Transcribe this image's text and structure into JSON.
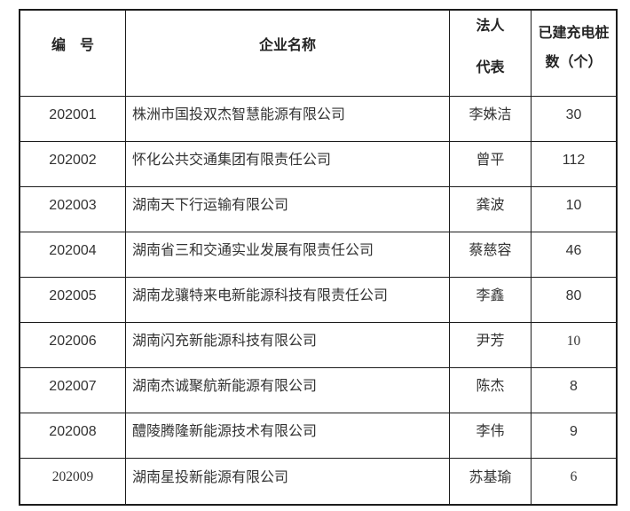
{
  "colors": {
    "border": "#1c1c1c",
    "text": "#333333",
    "header_text": "#242424",
    "background": "#ffffff"
  },
  "table": {
    "headers": {
      "id": "编　号",
      "company": "企业名称",
      "legal_line1": "法人",
      "legal_line2": "代表",
      "count_line1": "已建充电桩",
      "count_line2": "数（个）"
    },
    "rows": [
      {
        "id": "202001",
        "company": "株洲市国投双杰智慧能源有限公司",
        "legal": "李姝洁",
        "count": "30"
      },
      {
        "id": "202002",
        "company": "怀化公共交通集团有限责任公司",
        "legal": "曾平",
        "count": "112"
      },
      {
        "id": "202003",
        "company": "湖南天下行运输有限公司",
        "legal": "龚波",
        "count": "10"
      },
      {
        "id": "202004",
        "company": "湖南省三和交通实业发展有限责任公司",
        "legal": "蔡慈容",
        "count": "46"
      },
      {
        "id": "202005",
        "company": "湖南龙骧特来电新能源科技有限责任公司",
        "legal": "李鑫",
        "count": "80"
      },
      {
        "id": "202006",
        "company": "湖南闪充新能源科技有限公司",
        "legal": "尹芳",
        "count": "10"
      },
      {
        "id": "202007",
        "company": "湖南杰诚聚航新能源有限公司",
        "legal": "陈杰",
        "count": "8"
      },
      {
        "id": "202008",
        "company": "醴陵腾隆新能源技术有限公司",
        "legal": "李伟",
        "count": "9"
      },
      {
        "id": "202009",
        "company": "湖南星投新能源有限公司",
        "legal": "苏基瑜",
        "count": "6"
      }
    ]
  }
}
